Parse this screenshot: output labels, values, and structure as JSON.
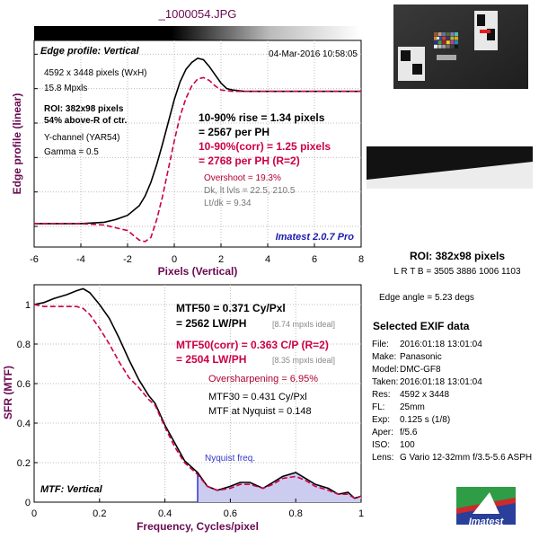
{
  "file_title": "_1000054.JPG",
  "colors": {
    "measured": "#000000",
    "corrected": "#cc0044",
    "label_purple": "#6a0a52",
    "nyquist_fill": "#ccccf0",
    "nyquist_line": "#3333cc",
    "imatest_blue": "#2a3f9a"
  },
  "chart_data": [
    {
      "type": "line",
      "title": "Edge profile: Vertical",
      "timestamp": "04-Mar-2016 10:58:05",
      "xlabel": "Pixels (Vertical)",
      "ylabel": "Edge profile (linear)",
      "xlim": [
        -6,
        8
      ],
      "x_ticks": [
        "-6",
        "-4",
        "-2",
        "0",
        "2",
        "4",
        "6",
        "8"
      ],
      "grid": true,
      "info": {
        "size": "4592 x 3448 pixels (WxH)",
        "mpxls": "15.8 Mpxls",
        "roi": "ROI: 382x98 pixels",
        "above": "54% above-R of ctr.",
        "channel": "Y-channel  (YAR54)",
        "gamma": "Gamma = 0.5"
      },
      "results": {
        "rise": "10-90% rise = 1.34 pixels",
        "rise_ph": "= 2567 per PH",
        "rise_corr": "10-90%(corr) = 1.25 pixels",
        "rise_corr_ph": "= 2768 per PH  (R=2)",
        "overshoot": "Overshoot = 19.3%",
        "dk_lt": "Dk, lt lvls = 22.5, 210.5",
        "lt_dk": "Lt/dk = 9.34"
      },
      "version": "Imatest 2.0.7 Pro",
      "series": [
        {
          "key": "measured",
          "x": [
            -6,
            -4,
            -3,
            -2.5,
            -2,
            -1.5,
            -1.25,
            -1,
            -0.75,
            -0.5,
            -0.25,
            0,
            0.25,
            0.5,
            0.75,
            1,
            1.25,
            1.5,
            1.75,
            2,
            2.25,
            2.5,
            3,
            4,
            5,
            6,
            8
          ],
          "y": [
            0.02,
            0.02,
            0.03,
            0.05,
            0.08,
            0.15,
            0.22,
            0.32,
            0.45,
            0.6,
            0.76,
            0.92,
            1.05,
            1.14,
            1.19,
            1.22,
            1.21,
            1.16,
            1.1,
            1.04,
            1.0,
            0.99,
            0.98,
            0.98,
            0.98,
            0.98,
            0.98
          ]
        },
        {
          "key": "corrected",
          "x": [
            -6,
            -4,
            -3,
            -2,
            -1.5,
            -1.25,
            -1,
            -0.75,
            -0.5,
            -0.25,
            0,
            0.25,
            0.5,
            0.75,
            1,
            1.25,
            1.5,
            1.75,
            2,
            2.5,
            3,
            4,
            6,
            8
          ],
          "y": [
            0.02,
            0.02,
            0.01,
            -0.03,
            -0.1,
            -0.11,
            -0.08,
            0.05,
            0.22,
            0.42,
            0.62,
            0.8,
            0.93,
            1.02,
            1.07,
            1.08,
            1.06,
            1.02,
            0.99,
            0.98,
            0.98,
            0.98,
            0.98,
            0.98
          ]
        }
      ]
    },
    {
      "type": "line",
      "title": "MTF: Vertical",
      "xlabel": "Frequency, Cycles/pixel",
      "ylabel": "SFR (MTF)",
      "xlim": [
        0,
        1
      ],
      "ylim": [
        0,
        1.1
      ],
      "x_ticks": [
        "0",
        "0.2",
        "0.4",
        "0.6",
        "0.8",
        "1"
      ],
      "y_ticks": [
        "0",
        "0.2",
        "0.4",
        "0.6",
        "0.8",
        "1"
      ],
      "grid": true,
      "nyquist": {
        "x": 0.5,
        "label": "Nyquist freq."
      },
      "results": {
        "mtf50": "MTF50 = 0.371 Cy/Pxl",
        "mtf50_lw": "= 2562 LW/PH",
        "mtf50_ideal": "[8.74 mpxls ideal]",
        "mtf50_corr": "MTF50(corr) = 0.363 C/P  (R=2)",
        "mtf50_corr_lw": "= 2504 LW/PH",
        "mtf50_corr_ideal": "[8.35 mpxls ideal]",
        "oversharpening": "Oversharpening = 6.95%",
        "mtf30": "MTF30 = 0.431 Cy/Pxl",
        "mtf_nyquist": "MTF at Nyquist = 0.148"
      },
      "series": [
        {
          "key": "measured",
          "x": [
            0,
            0.03,
            0.06,
            0.1,
            0.13,
            0.15,
            0.17,
            0.2,
            0.23,
            0.26,
            0.29,
            0.32,
            0.35,
            0.37,
            0.4,
            0.43,
            0.46,
            0.5,
            0.53,
            0.56,
            0.6,
            0.63,
            0.66,
            0.7,
            0.73,
            0.76,
            0.8,
            0.83,
            0.86,
            0.9,
            0.93,
            0.96,
            0.98,
            1.0
          ],
          "y": [
            1.0,
            1.01,
            1.03,
            1.05,
            1.07,
            1.08,
            1.06,
            1.0,
            0.93,
            0.83,
            0.72,
            0.62,
            0.54,
            0.5,
            0.39,
            0.3,
            0.21,
            0.15,
            0.08,
            0.06,
            0.08,
            0.1,
            0.1,
            0.07,
            0.1,
            0.13,
            0.15,
            0.12,
            0.09,
            0.07,
            0.04,
            0.05,
            0.02,
            0.03
          ]
        },
        {
          "key": "corrected",
          "x": [
            0,
            0.03,
            0.06,
            0.1,
            0.13,
            0.15,
            0.17,
            0.2,
            0.23,
            0.26,
            0.29,
            0.32,
            0.35,
            0.37,
            0.4,
            0.43,
            0.46,
            0.5,
            0.53,
            0.56,
            0.6,
            0.63,
            0.66,
            0.7,
            0.73,
            0.76,
            0.8,
            0.83,
            0.86,
            0.9,
            0.93,
            0.96,
            0.98,
            1.0
          ],
          "y": [
            1.0,
            0.99,
            0.99,
            0.99,
            0.99,
            0.98,
            0.95,
            0.88,
            0.8,
            0.71,
            0.63,
            0.58,
            0.52,
            0.49,
            0.38,
            0.28,
            0.2,
            0.14,
            0.08,
            0.06,
            0.07,
            0.09,
            0.09,
            0.07,
            0.09,
            0.12,
            0.13,
            0.11,
            0.08,
            0.06,
            0.04,
            0.04,
            0.02,
            0.03
          ]
        }
      ]
    }
  ],
  "right_panel": {
    "roi_title": "ROI: 382x98 pixels",
    "lrtb": "L R  T B = 3505 3886  1006 1103",
    "edge_angle": "Edge angle = 5.23 degs",
    "exif_title": "Selected EXIF data",
    "exif": [
      {
        "label": "File:",
        "value": "2016:01:18 13:01:04"
      },
      {
        "label": "Make:",
        "value": "Panasonic"
      },
      {
        "label": "Model:",
        "value": "DMC-GF8"
      },
      {
        "label": "Taken:",
        "value": "2016:01:18 13:01:04"
      },
      {
        "label": "Res:",
        "value": "4592 x 3448"
      },
      {
        "label": "FL:",
        "value": "25mm"
      },
      {
        "label": "Exp:",
        "value": "0.125 s  (1/8)"
      },
      {
        "label": "Aper:",
        "value": "f/5.6"
      },
      {
        "label": "ISO:",
        "value": "100"
      },
      {
        "label": "Lens:",
        "value": "G Vario 12-32mm f/3.5-5.6 ASPH"
      }
    ],
    "logo_text": "Imatest"
  }
}
